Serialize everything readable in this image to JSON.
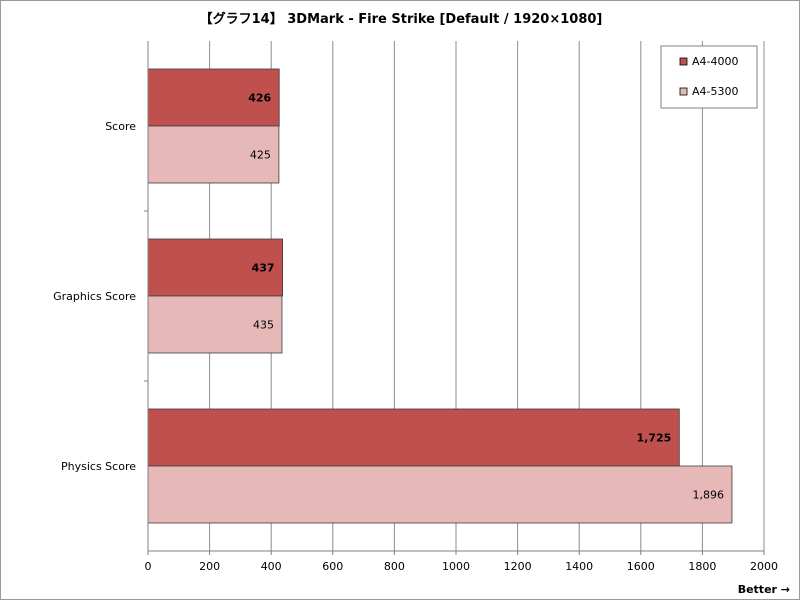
{
  "chart_data": {
    "type": "bar",
    "orientation": "horizontal",
    "title": "【グラフ14】 3DMark - Fire Strike [Default / 1920×1080]",
    "categories": [
      "Score",
      "Graphics Score",
      "Physics Score"
    ],
    "series": [
      {
        "name": "A4-4000",
        "values": [
          426,
          437,
          1725
        ],
        "labels": [
          "426",
          "437",
          "1,725"
        ],
        "color": "#c0504d"
      },
      {
        "name": "A4-5300",
        "values": [
          425,
          435,
          1896
        ],
        "labels": [
          "425",
          "435",
          "1,896"
        ],
        "color": "#e6b9b8"
      }
    ],
    "xlim": [
      0,
      2000
    ],
    "xticks": [
      0,
      200,
      400,
      600,
      800,
      1000,
      1200,
      1400,
      1600,
      1800,
      2000
    ],
    "grid": true,
    "legend_position": "top-right",
    "note": "Better →"
  }
}
